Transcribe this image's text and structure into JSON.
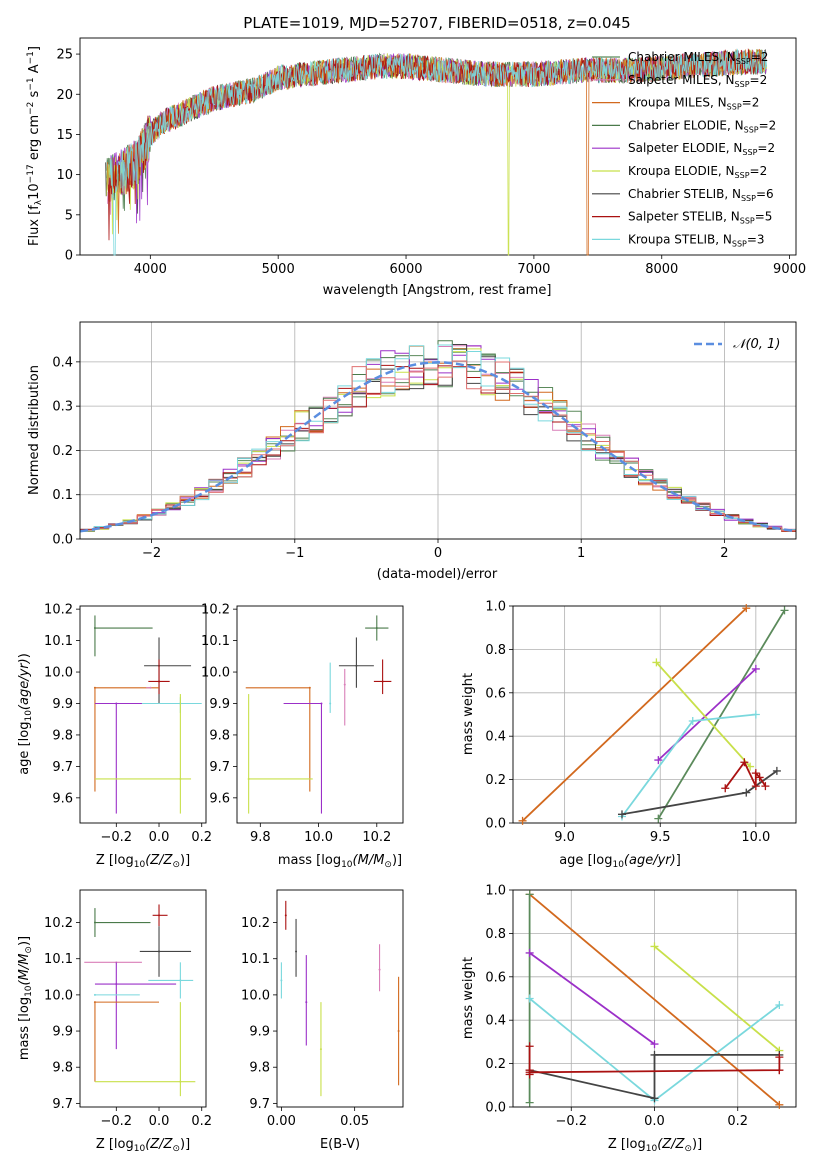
{
  "chart_data": [
    {
      "type": "line",
      "title": "PLATE=1019, MJD=52707, FIBERID=0518, z=0.045",
      "xlabel": "wavelength [Angstrom, rest frame]",
      "ylabel": "Flux [f",
      "xlim": [
        3450,
        9050
      ],
      "ylim": [
        0,
        27
      ],
      "xticks": [
        4000,
        5000,
        6000,
        7000,
        8000,
        9000
      ],
      "yticks": [
        0,
        5,
        10,
        15,
        20,
        25
      ],
      "legend_position": "top-right",
      "series": [
        {
          "name": "Chabrier MILES, N",
          "sub": "SSP",
          "suffix": "=2",
          "color": "#5b8a5b"
        },
        {
          "name": "Salpeter MILES, N",
          "sub": "SSP",
          "suffix": "=2",
          "color": "#d97fb8"
        },
        {
          "name": "Kroupa MILES, N",
          "sub": "SSP",
          "suffix": "=2",
          "color": "#d2691e"
        },
        {
          "name": "Chabrier ELODIE, N",
          "sub": "SSP",
          "suffix": "=2",
          "color": "#4a7a4a"
        },
        {
          "name": "Salpeter ELODIE, N",
          "sub": "SSP",
          "suffix": "=2",
          "color": "#9b30c8"
        },
        {
          "name": "Kroupa ELODIE, N",
          "sub": "SSP",
          "suffix": "=2",
          "color": "#c8e04a"
        },
        {
          "name": "Chabrier STELIB, N",
          "sub": "SSP",
          "suffix": "=6",
          "color": "#444444"
        },
        {
          "name": "Salpeter STELIB, N",
          "sub": "SSP",
          "suffix": "=5",
          "color": "#aa1111"
        },
        {
          "name": "Kroupa STELIB, N",
          "sub": "SSP",
          "suffix": "=3",
          "color": "#7ad8dd"
        }
      ],
      "envelope": {
        "x": [
          3650,
          3750,
          3900,
          4000,
          4100,
          4300,
          4500,
          4800,
          5000,
          5200,
          5500,
          5800,
          6000,
          6300,
          6600,
          7000,
          7400,
          7800,
          8200,
          8600,
          8800
        ],
        "y": [
          9,
          10,
          11.5,
          15,
          16.5,
          18,
          19.5,
          20.5,
          22,
          22.5,
          23,
          23.5,
          23.5,
          23,
          22.5,
          22.5,
          23,
          23,
          23.5,
          24,
          24
        ]
      },
      "dropouts": [
        {
          "x": 6800,
          "series": 5
        },
        {
          "x": 7420,
          "series": 2
        },
        {
          "x": 3720,
          "series": 8
        }
      ]
    },
    {
      "type": "bar",
      "ylabel": "Normed distribution",
      "xlabel": "(data-model)/error",
      "xlim": [
        -2.5,
        2.5
      ],
      "ylim": [
        0,
        0.49
      ],
      "xticks": [
        -2,
        -1,
        0,
        1,
        2
      ],
      "yticks": [
        0.0,
        0.1,
        0.2,
        0.3,
        0.4
      ],
      "grid": true,
      "legend_position": "top-right",
      "reference_curve": {
        "name": "$\\mathcal{N}(0,1)$",
        "label_text": "𝒩(0, 1)",
        "color": "#5b8ee0",
        "style": "dashed"
      },
      "bin_width": 0.1,
      "colors": [
        "#5b8a5b",
        "#d97fb8",
        "#d2691e",
        "#4a7a4a",
        "#9b30c8",
        "#c8e04a",
        "#444444",
        "#aa1111",
        "#7ad8dd",
        "#e07070"
      ]
    },
    {
      "type": "scatter",
      "panel": "age-vs-Z",
      "xlabel": "Z [log",
      "ylabel": "age  [log",
      "xlim": [
        -0.37,
        0.22
      ],
      "ylim": [
        9.52,
        10.21
      ],
      "xticks": [
        -0.2,
        0.0,
        0.2
      ],
      "yticks": [
        9.6,
        9.7,
        9.8,
        9.9,
        10.0,
        10.1,
        10.2
      ],
      "points": [
        {
          "x": -0.3,
          "y": 10.14,
          "xerr": [
            0.0,
            0.27
          ],
          "yerr": [
            0.09,
            0.04
          ],
          "color": "#4a7a4a"
        },
        {
          "x": 0.0,
          "y": 10.02,
          "xerr": [
            0.07,
            0.15
          ],
          "yerr": [
            0.12,
            0.09
          ],
          "color": "#444444"
        },
        {
          "x": 0.0,
          "y": 9.97,
          "xerr": [
            0.05,
            0.05
          ],
          "yerr": [
            0.04,
            0.07
          ],
          "color": "#aa1111"
        },
        {
          "x": -0.3,
          "y": 9.95,
          "xerr": [
            0.0,
            0.3
          ],
          "yerr": [
            0.33,
            0.0
          ],
          "color": "#d2691e"
        },
        {
          "x": -0.2,
          "y": 9.9,
          "xerr": [
            0.1,
            0.2
          ],
          "yerr": [
            0.35,
            0.0
          ],
          "color": "#9b30c8"
        },
        {
          "x": 0.1,
          "y": 9.9,
          "xerr": [
            0.18,
            0.1
          ],
          "yerr": [
            0.03,
            0.02
          ],
          "color": "#7ad8dd"
        },
        {
          "x": 0.1,
          "y": 9.66,
          "xerr": [
            0.4,
            0.05
          ],
          "yerr": [
            0.11,
            0.27
          ],
          "color": "#c8e04a"
        },
        {
          "x": -0.04,
          "y": 9.95,
          "xerr": [
            0.02,
            0.0
          ],
          "yerr": [
            0.0,
            0.0
          ],
          "color": "#d97fb8"
        }
      ]
    },
    {
      "type": "scatter",
      "panel": "age-vs-mass",
      "xlabel": "mass [log",
      "xlim": [
        9.72,
        10.29
      ],
      "ylim": [
        9.52,
        10.21
      ],
      "xticks": [
        9.8,
        10.0,
        10.2
      ],
      "yticks": [
        9.6,
        9.7,
        9.8,
        9.9,
        10.0,
        10.1,
        10.2
      ],
      "points": [
        {
          "x": 10.2,
          "y": 10.14,
          "xerr": [
            0.04,
            0.04
          ],
          "yerr": [
            0.04,
            0.04
          ],
          "color": "#4a7a4a"
        },
        {
          "x": 10.13,
          "y": 10.02,
          "xerr": [
            0.06,
            0.06
          ],
          "yerr": [
            0.07,
            0.09
          ],
          "color": "#444444"
        },
        {
          "x": 10.22,
          "y": 9.97,
          "xerr": [
            0.03,
            0.03
          ],
          "yerr": [
            0.04,
            0.07
          ],
          "color": "#aa1111"
        },
        {
          "x": 9.97,
          "y": 9.95,
          "xerr": [
            0.22,
            0.0
          ],
          "yerr": [
            0.33,
            0.0
          ],
          "color": "#d2691e"
        },
        {
          "x": 10.01,
          "y": 9.9,
          "xerr": [
            0.13,
            0.0
          ],
          "yerr": [
            0.35,
            0.0
          ],
          "color": "#9b30c8"
        },
        {
          "x": 10.04,
          "y": 9.9,
          "xerr": [
            0.0,
            0.0
          ],
          "yerr": [
            0.03,
            0.13
          ],
          "color": "#7ad8dd"
        },
        {
          "x": 9.76,
          "y": 9.66,
          "xerr": [
            0.0,
            0.22
          ],
          "yerr": [
            0.11,
            0.27
          ],
          "color": "#c8e04a"
        },
        {
          "x": 10.09,
          "y": 9.96,
          "xerr": [
            0.0,
            0.0
          ],
          "yerr": [
            0.13,
            0.05
          ],
          "color": "#d97fb8"
        }
      ]
    },
    {
      "type": "line",
      "panel": "mass-weight-vs-age",
      "xlabel": "age  [log",
      "ylabel": "mass weight",
      "xlim": [
        8.73,
        10.21
      ],
      "ylim": [
        0,
        1.0
      ],
      "xticks": [
        9.0,
        9.5,
        10.0
      ],
      "yticks": [
        0.0,
        0.2,
        0.4,
        0.6,
        0.8,
        1.0
      ],
      "grid": true,
      "series": [
        {
          "color": "#d2691e",
          "x": [
            8.78,
            9.95
          ],
          "y": [
            0.01,
            0.99
          ]
        },
        {
          "color": "#5b8a5b",
          "x": [
            9.49,
            10.15
          ],
          "y": [
            0.02,
            0.98
          ]
        },
        {
          "color": "#9b30c8",
          "x": [
            9.49,
            10.0
          ],
          "y": [
            0.29,
            0.71
          ]
        },
        {
          "color": "#c8e04a",
          "x": [
            9.48,
            9.97
          ],
          "y": [
            0.74,
            0.26
          ]
        },
        {
          "color": "#7ad8dd",
          "x": [
            9.3,
            9.67,
            10.0
          ],
          "y": [
            0.03,
            0.47,
            0.5
          ]
        },
        {
          "color": "#444444",
          "x": [
            9.3,
            9.95,
            10.11
          ],
          "y": [
            0.04,
            0.14,
            0.24
          ]
        },
        {
          "color": "#aa1111",
          "x": [
            9.84,
            9.94,
            10.0,
            10.0,
            10.02,
            10.05
          ],
          "y": [
            0.16,
            0.28,
            0.17,
            0.23,
            0.21,
            0.17
          ]
        }
      ]
    },
    {
      "type": "scatter",
      "panel": "mass-vs-Z",
      "xlabel": "Z [log",
      "ylabel": "mass [log",
      "xlim": [
        -0.37,
        0.22
      ],
      "ylim": [
        9.69,
        10.29
      ],
      "xticks": [
        -0.2,
        0.0,
        0.2
      ],
      "yticks": [
        9.7,
        9.8,
        9.9,
        10.0,
        10.1,
        10.2
      ],
      "points": [
        {
          "x": -0.3,
          "y": 10.2,
          "xerr": [
            0.0,
            0.26
          ],
          "yerr": [
            0.04,
            0.04
          ],
          "color": "#4a7a4a"
        },
        {
          "x": 0.0,
          "y": 10.22,
          "xerr": [
            0.03,
            0.04
          ],
          "yerr": [
            0.03,
            0.03
          ],
          "color": "#aa1111"
        },
        {
          "x": 0.0,
          "y": 10.12,
          "xerr": [
            0.09,
            0.15
          ],
          "yerr": [
            0.07,
            0.07
          ],
          "color": "#444444"
        },
        {
          "x": -0.2,
          "y": 10.09,
          "xerr": [
            0.15,
            0.12
          ],
          "yerr": [
            0.0,
            0.0
          ],
          "color": "#d97fb8"
        },
        {
          "x": 0.1,
          "y": 10.04,
          "xerr": [
            0.15,
            0.06
          ],
          "yerr": [
            0.05,
            0.05
          ],
          "color": "#7ad8dd"
        },
        {
          "x": -0.2,
          "y": 10.03,
          "xerr": [
            0.1,
            0.28
          ],
          "yerr": [
            0.18,
            0.06
          ],
          "color": "#9b30c8"
        },
        {
          "x": -0.3,
          "y": 10.0,
          "xerr": [
            0.0,
            0.21
          ],
          "yerr": [
            0.0,
            0.0
          ],
          "color": "#7ad8dd"
        },
        {
          "x": -0.3,
          "y": 9.98,
          "xerr": [
            0.0,
            0.3
          ],
          "yerr": [
            0.22,
            0.0
          ],
          "color": "#d2691e"
        },
        {
          "x": 0.1,
          "y": 9.76,
          "xerr": [
            0.4,
            0.07
          ],
          "yerr": [
            0.04,
            0.22
          ],
          "color": "#c8e04a"
        }
      ]
    },
    {
      "type": "scatter",
      "panel": "mass-vs-EBV",
      "xlabel": "E(B-V)",
      "xlim": [
        -0.003,
        0.083
      ],
      "ylim": [
        9.69,
        10.29
      ],
      "xticks": [
        0.0,
        0.05
      ],
      "yticks": [
        9.7,
        9.8,
        9.9,
        10.0,
        10.1,
        10.2
      ],
      "points": [
        {
          "x": 0.003,
          "y": 10.22,
          "yerr": [
            0.04,
            0.04
          ],
          "color": "#aa1111"
        },
        {
          "x": 0.01,
          "y": 10.12,
          "yerr": [
            0.07,
            0.09
          ],
          "color": "#444444"
        },
        {
          "x": 0.0,
          "y": 10.04,
          "yerr": [
            0.05,
            0.05
          ],
          "color": "#7ad8dd"
        },
        {
          "x": 0.017,
          "y": 9.98,
          "yerr": [
            0.12,
            0.13
          ],
          "color": "#9b30c8"
        },
        {
          "x": 0.027,
          "y": 9.85,
          "yerr": [
            0.13,
            0.13
          ],
          "color": "#c8e04a"
        },
        {
          "x": 0.067,
          "y": 10.07,
          "yerr": [
            0.06,
            0.07
          ],
          "color": "#d97fb8"
        },
        {
          "x": 0.08,
          "y": 9.9,
          "yerr": [
            0.15,
            0.15
          ],
          "color": "#d2691e"
        }
      ]
    },
    {
      "type": "line",
      "panel": "mass-weight-vs-Z",
      "xlabel": "Z [log",
      "ylabel": "mass weight",
      "xlim": [
        -0.34,
        0.34
      ],
      "ylim": [
        0,
        1.0
      ],
      "xticks": [
        -0.2,
        0.0,
        0.2
      ],
      "yticks": [
        0.0,
        0.2,
        0.4,
        0.6,
        0.8,
        1.0
      ],
      "grid": true,
      "series": [
        {
          "color": "#d2691e",
          "x": [
            -0.3,
            0.3
          ],
          "y": [
            0.98,
            0.01
          ]
        },
        {
          "color": "#5b8a5b",
          "x": [
            -0.3,
            -0.3
          ],
          "y": [
            0.02,
            0.98
          ]
        },
        {
          "color": "#9b30c8",
          "x": [
            -0.3,
            0.0
          ],
          "y": [
            0.71,
            0.29
          ]
        },
        {
          "color": "#c8e04a",
          "x": [
            0.0,
            0.3
          ],
          "y": [
            0.74,
            0.26
          ]
        },
        {
          "color": "#7ad8dd",
          "x": [
            -0.3,
            0.0,
            0.3
          ],
          "y": [
            0.5,
            0.03,
            0.47
          ]
        },
        {
          "color": "#444444",
          "x": [
            -0.3,
            0.0,
            0.0,
            0.3
          ],
          "y": [
            0.17,
            0.04,
            0.24,
            0.24
          ]
        },
        {
          "color": "#aa1111",
          "x": [
            -0.3,
            -0.3,
            -0.3,
            -0.3,
            0.3,
            0.3,
            0.3
          ],
          "y": [
            0.28,
            0.17,
            0.15,
            0.16,
            0.17,
            0.23,
            0.17
          ]
        }
      ]
    }
  ]
}
